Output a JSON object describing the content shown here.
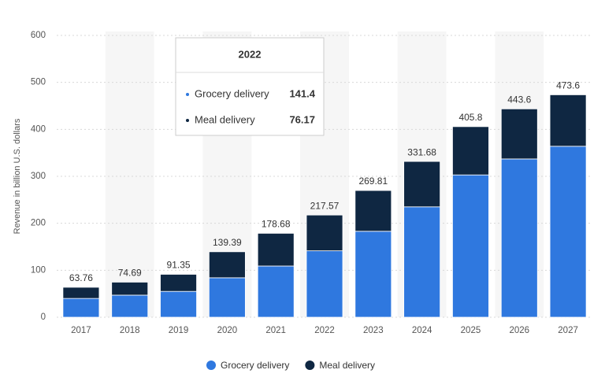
{
  "chart_data": {
    "type": "stacked_bar",
    "y_label": "Revenue in billion U.S. dollars",
    "categories": [
      "2017",
      "2018",
      "2019",
      "2020",
      "2021",
      "2022",
      "2023",
      "2024",
      "2025",
      "2026",
      "2027"
    ],
    "series": [
      {
        "name": "Grocery delivery",
        "color": "#2f78df",
        "values": [
          40,
          47,
          55,
          84,
          109,
          141.4,
          183,
          235,
          303,
          337,
          364
        ]
      },
      {
        "name": "Meal delivery",
        "color": "#0f2742",
        "values": [
          23.76,
          27.69,
          36.35,
          55.39,
          69.68,
          76.17,
          86.81,
          96.68,
          102.8,
          106.6,
          109.6
        ]
      }
    ],
    "totals": [
      63.76,
      74.69,
      91.35,
      139.39,
      178.68,
      217.57,
      269.81,
      331.68,
      405.8,
      443.6,
      473.6
    ],
    "ylim": [
      0,
      600
    ],
    "yticks": [
      0,
      100,
      200,
      300,
      400,
      500,
      600
    ],
    "grid": true,
    "tooltip_index": 5
  }
}
